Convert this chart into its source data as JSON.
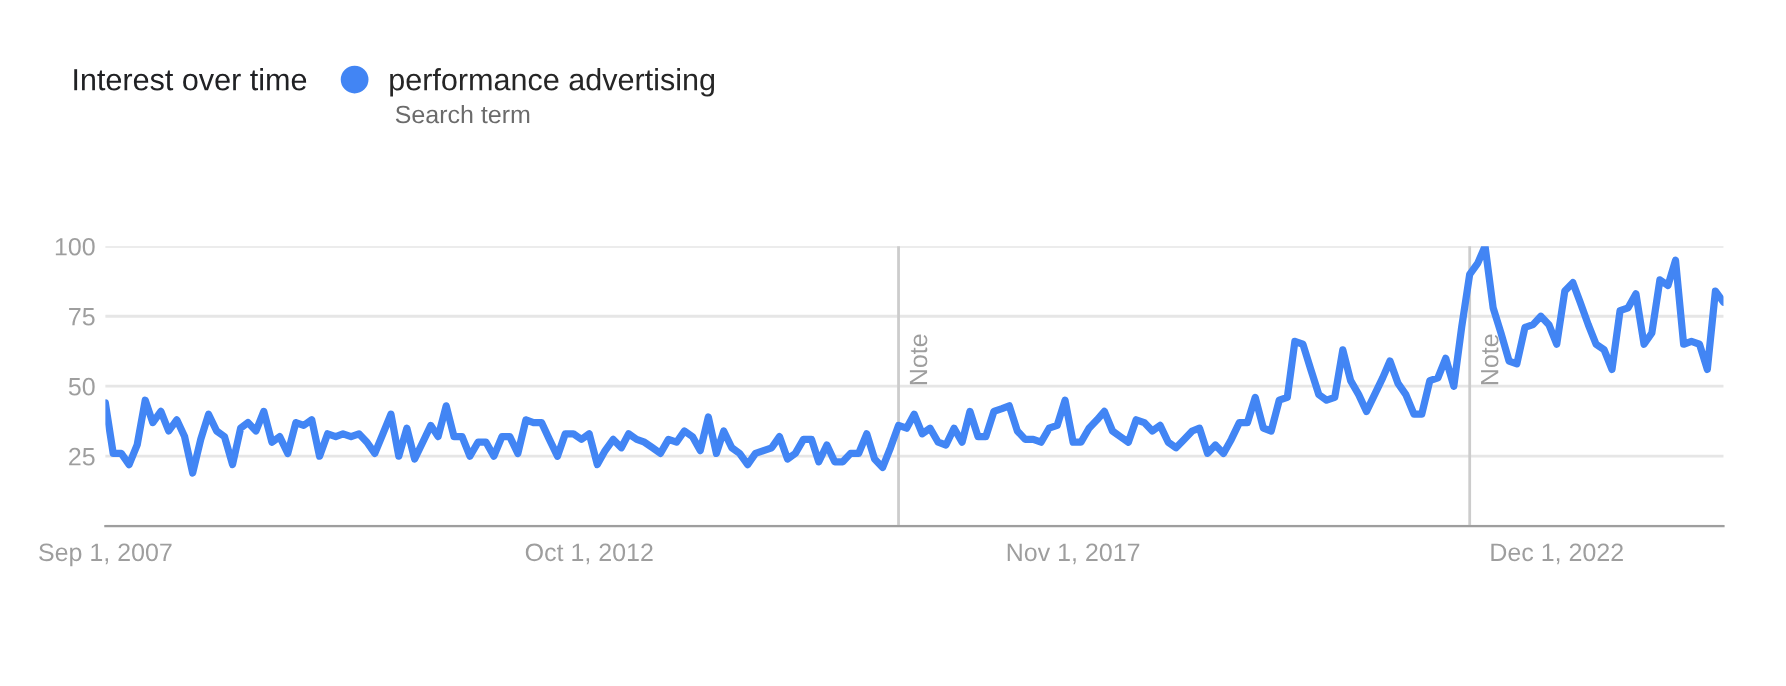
{
  "chart_data": {
    "type": "line",
    "title": "Interest over time",
    "annotations": [
      "Search term"
    ],
    "x": [
      "2007-09",
      "2007-10",
      "2007-11",
      "2007-12",
      "2008-01",
      "2008-02",
      "2008-03",
      "2008-04",
      "2008-05",
      "2008-06",
      "2008-07",
      "2008-08",
      "2008-09",
      "2008-10",
      "2008-11",
      "2008-12",
      "2009-01",
      "2009-02",
      "2009-03",
      "2009-04",
      "2009-05",
      "2009-06",
      "2009-07",
      "2009-08",
      "2009-09",
      "2009-10",
      "2009-11",
      "2009-12",
      "2010-01",
      "2010-02",
      "2010-03",
      "2010-04",
      "2010-05",
      "2010-06",
      "2010-07",
      "2010-08",
      "2010-09",
      "2010-10",
      "2010-11",
      "2010-12",
      "2011-01",
      "2011-02",
      "2011-03",
      "2011-04",
      "2011-05",
      "2011-06",
      "2011-07",
      "2011-08",
      "2011-09",
      "2011-10",
      "2011-11",
      "2011-12",
      "2012-01",
      "2012-02",
      "2012-03",
      "2012-04",
      "2012-05",
      "2012-06",
      "2012-07",
      "2012-08",
      "2012-09",
      "2012-10",
      "2012-11",
      "2012-12",
      "2013-01",
      "2013-02",
      "2013-03",
      "2013-04",
      "2013-05",
      "2013-06",
      "2013-07",
      "2013-08",
      "2013-09",
      "2013-10",
      "2013-11",
      "2013-12",
      "2014-01",
      "2014-02",
      "2014-03",
      "2014-04",
      "2014-05",
      "2014-06",
      "2014-07",
      "2014-08",
      "2014-09",
      "2014-10",
      "2014-11",
      "2014-12",
      "2015-01",
      "2015-02",
      "2015-03",
      "2015-04",
      "2015-05",
      "2015-06",
      "2015-07",
      "2015-08",
      "2015-09",
      "2015-10",
      "2015-11",
      "2015-12",
      "2016-01",
      "2016-02",
      "2016-03",
      "2016-04",
      "2016-05",
      "2016-06",
      "2016-07",
      "2016-08",
      "2016-09",
      "2016-10",
      "2016-11",
      "2016-12",
      "2017-01",
      "2017-02",
      "2017-03",
      "2017-04",
      "2017-05",
      "2017-06",
      "2017-07",
      "2017-08",
      "2017-09",
      "2017-10",
      "2017-11",
      "2017-12",
      "2018-01",
      "2018-02",
      "2018-03",
      "2018-04",
      "2018-05",
      "2018-06",
      "2018-07",
      "2018-08",
      "2018-09",
      "2018-10",
      "2018-11",
      "2018-12",
      "2019-01",
      "2019-02",
      "2019-03",
      "2019-04",
      "2019-05",
      "2019-06",
      "2019-07",
      "2019-08",
      "2019-09",
      "2019-10",
      "2019-11",
      "2019-12",
      "2020-01",
      "2020-02",
      "2020-03",
      "2020-04",
      "2020-05",
      "2020-06",
      "2020-07",
      "2020-08",
      "2020-09",
      "2020-10",
      "2020-11",
      "2020-12",
      "2021-01",
      "2021-02",
      "2021-03",
      "2021-04",
      "2021-05",
      "2021-06",
      "2021-07",
      "2021-08",
      "2021-09",
      "2021-10",
      "2021-11",
      "2021-12",
      "2022-01",
      "2022-02",
      "2022-03",
      "2022-04",
      "2022-05",
      "2022-06",
      "2022-07",
      "2022-08",
      "2022-09",
      "2022-10",
      "2022-11",
      "2022-12",
      "2023-01",
      "2023-02",
      "2023-03",
      "2023-04",
      "2023-05",
      "2023-06",
      "2023-07",
      "2023-08",
      "2023-09",
      "2023-10",
      "2023-11",
      "2023-12",
      "2024-01",
      "2024-02",
      "2024-03",
      "2024-04",
      "2024-05",
      "2024-06",
      "2024-07",
      "2024-08",
      "2024-09"
    ],
    "series": [
      {
        "name": "performance advertising",
        "color": "#4285f4",
        "values": [
          44,
          26,
          26,
          22,
          29,
          45,
          37,
          41,
          34,
          38,
          32,
          19,
          31,
          40,
          34,
          32,
          22,
          35,
          37,
          34,
          41,
          30,
          32,
          26,
          37,
          36,
          38,
          25,
          33,
          32,
          33,
          32,
          33,
          30,
          26,
          33,
          40,
          25,
          35,
          24,
          30,
          36,
          32,
          43,
          32,
          32,
          25,
          30,
          30,
          25,
          32,
          32,
          26,
          38,
          37,
          37,
          31,
          25,
          33,
          33,
          31,
          33,
          22,
          27,
          31,
          28,
          33,
          31,
          30,
          28,
          26,
          31,
          30,
          34,
          32,
          27,
          39,
          26,
          34,
          28,
          26,
          22,
          26,
          27,
          28,
          32,
          24,
          26,
          31,
          31,
          23,
          29,
          23,
          23,
          26,
          26,
          33,
          24,
          21,
          28,
          36,
          35,
          40,
          33,
          35,
          30,
          29,
          35,
          30,
          41,
          32,
          32,
          41,
          42,
          43,
          34,
          31,
          31,
          30,
          35,
          36,
          45,
          30,
          30,
          35,
          38,
          41,
          34,
          32,
          30,
          38,
          37,
          34,
          36,
          30,
          28,
          31,
          34,
          35,
          26,
          29,
          26,
          31,
          37,
          37,
          46,
          35,
          34,
          45,
          46,
          66,
          65,
          56,
          47,
          45,
          46,
          63,
          52,
          47,
          41,
          47,
          53,
          59,
          51,
          47,
          40,
          40,
          52,
          53,
          60,
          50,
          71,
          90,
          94,
          100,
          78,
          69,
          59,
          58,
          71,
          72,
          75,
          72,
          65,
          84,
          87,
          80,
          72,
          65,
          63,
          56,
          77,
          78,
          83,
          65,
          69,
          88,
          86,
          95,
          65,
          66,
          65,
          56,
          84,
          80
        ]
      }
    ],
    "xlim": [
      "2007-09",
      "2024-09"
    ],
    "xticks": [
      {
        "value": "2007-09-01",
        "label": "Sep 1, 2007"
      },
      {
        "value": "2012-10-01",
        "label": "Oct 1, 2012"
      },
      {
        "value": "2017-11-01",
        "label": "Nov 1, 2017"
      },
      {
        "value": "2022-12-01",
        "label": "Dec 1, 2022"
      }
    ],
    "ylim": [
      0,
      100
    ],
    "yticks": [
      {
        "value": 0,
        "label": null
      },
      25,
      50,
      75,
      100
    ],
    "grid": "y",
    "legend": "top left",
    "line_style": "solid",
    "ref_lines": [
      {
        "axis": "x",
        "value": "2016-01",
        "label": "Note",
        "color": "#cccccc"
      },
      {
        "axis": "x",
        "value": "2022-01",
        "label": "Note",
        "color": "#cccccc"
      }
    ]
  }
}
